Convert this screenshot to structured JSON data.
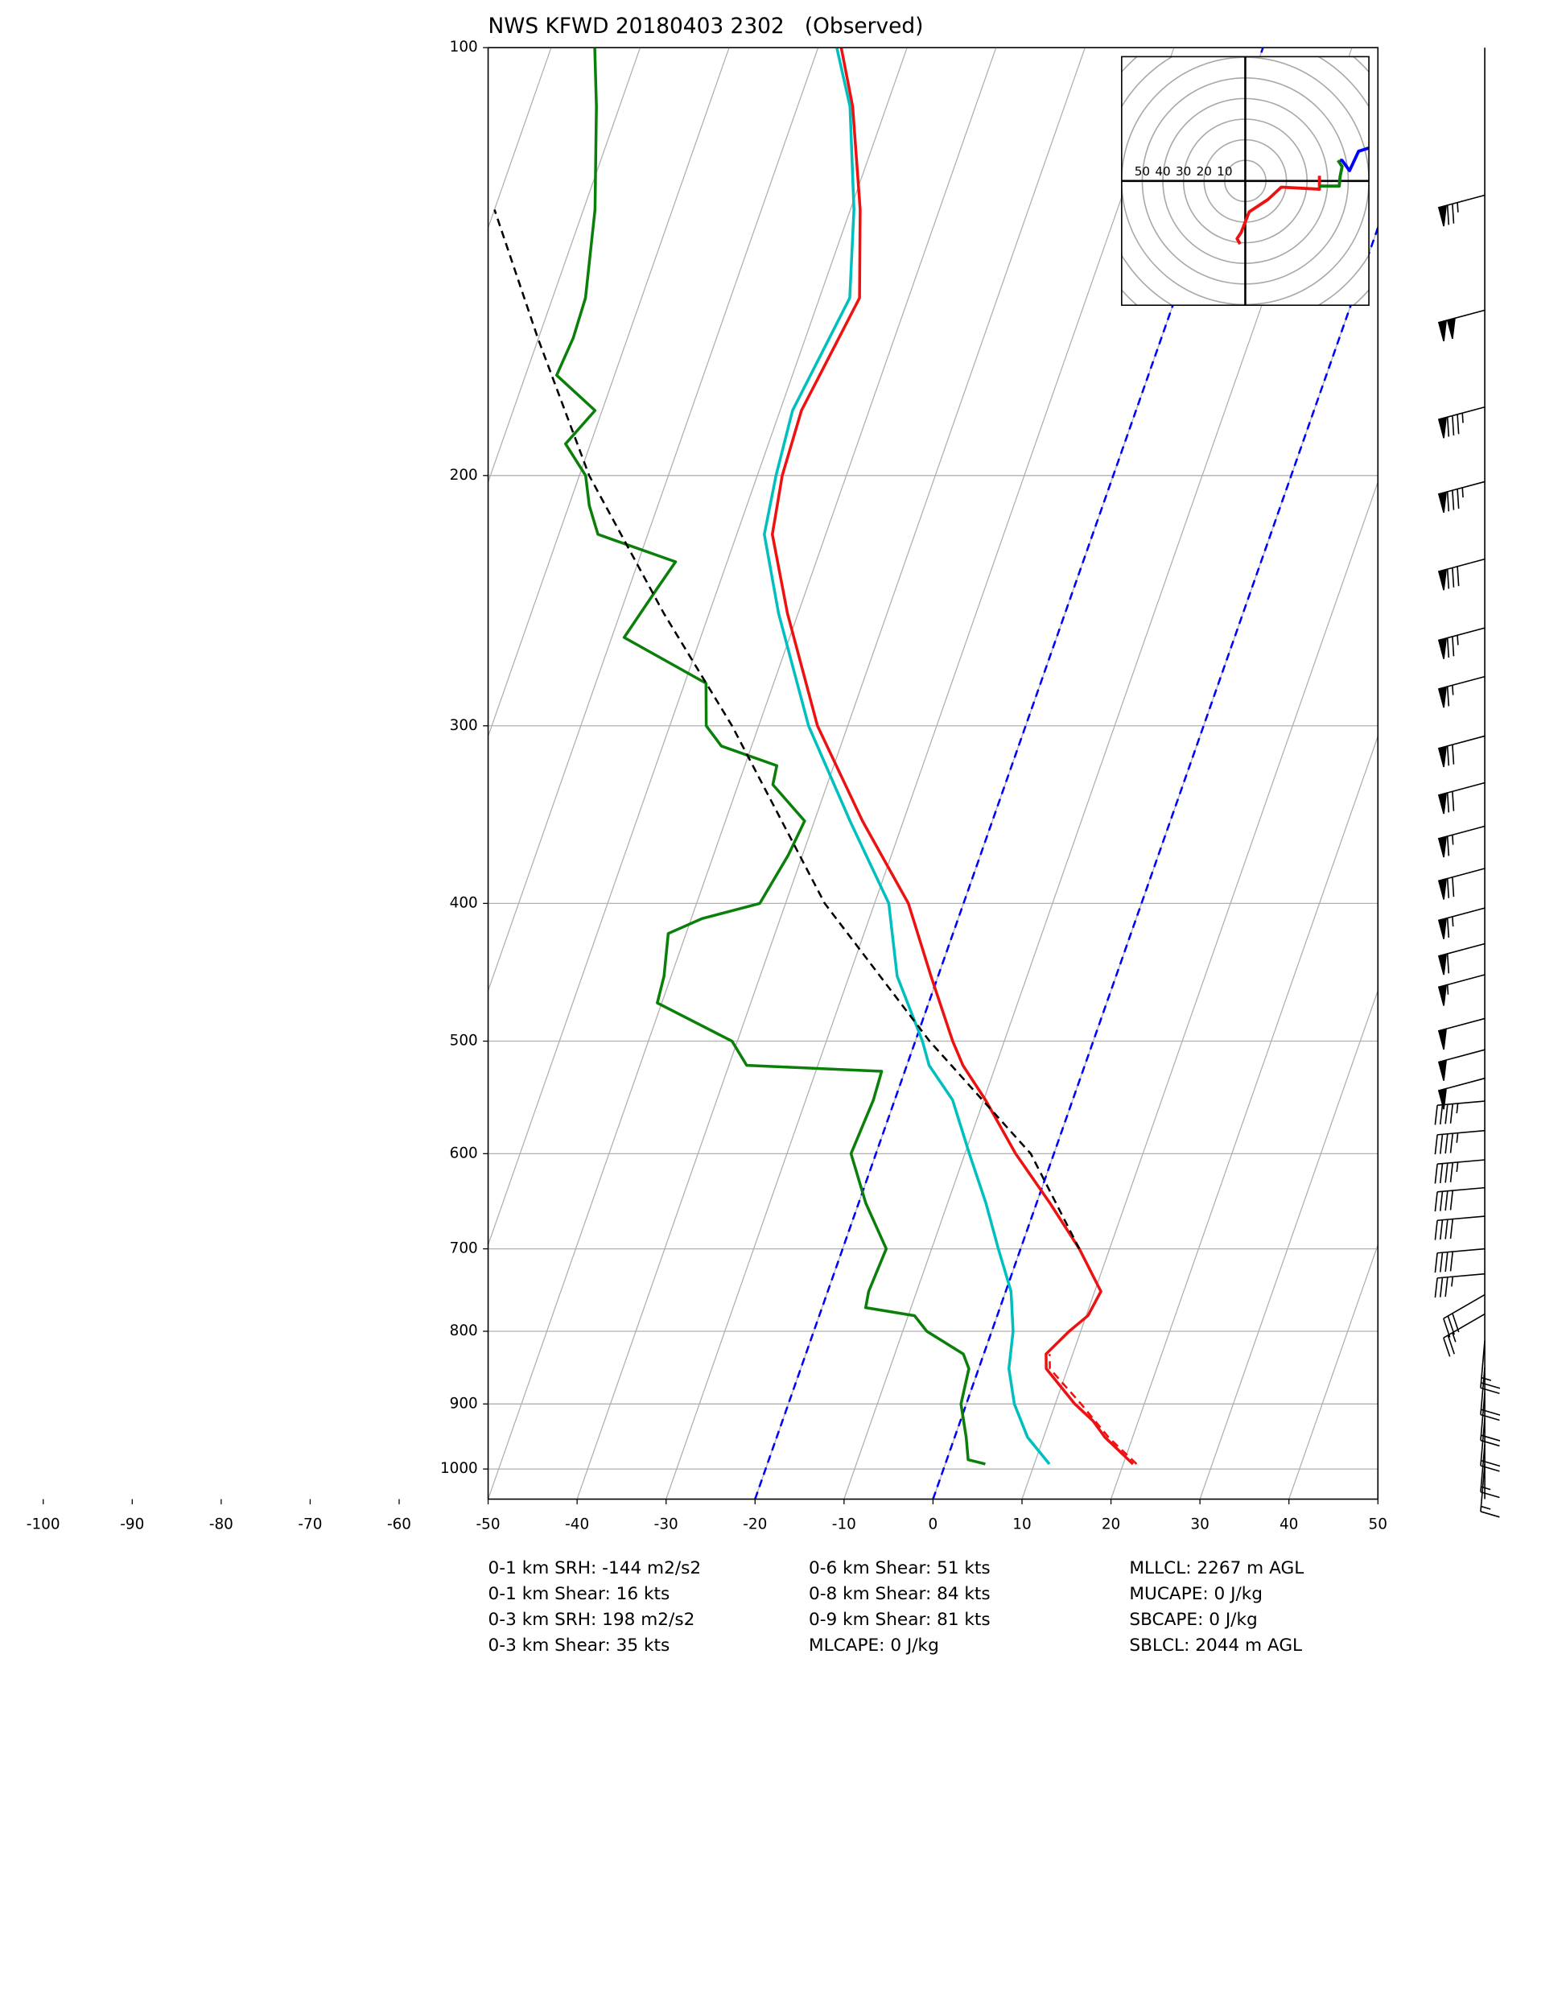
{
  "chart_data": {
    "type": "skewt",
    "title": "NWS KFWD 20180403 2302   (Observed)",
    "xlim": [
      -50,
      50
    ],
    "xticks": [
      -100,
      -90,
      -80,
      -70,
      -60,
      -50,
      -40,
      -30,
      -20,
      -10,
      0,
      10,
      20,
      30,
      40,
      50
    ],
    "ylim": [
      1050,
      100
    ],
    "yticks": [
      100,
      200,
      300,
      400,
      500,
      600,
      700,
      800,
      900,
      1000
    ],
    "log_y": true,
    "grid": true,
    "highlight_isotherms": [
      -20,
      0
    ],
    "highlight_color": "#0000ff",
    "series": [
      {
        "color": "#ee1111",
        "style": "solid",
        "pressure": [
          992,
          950,
          925,
          900,
          850,
          830,
          800,
          780,
          750,
          700,
          650,
          600,
          550,
          520,
          500,
          450,
          400,
          350,
          300,
          250,
          220,
          200,
          180,
          150,
          130,
          110,
          100
        ],
        "temperature": [
          21.1,
          16.9,
          14.9,
          12.2,
          7.6,
          7.0,
          8.7,
          10.2,
          10.7,
          6.6,
          1.5,
          -4.3,
          -9.8,
          -13.7,
          -15.8,
          -20.8,
          -26.2,
          -34.6,
          -43.4,
          -51.2,
          -56.0,
          -57.2,
          -57.6,
          -55.5,
          -58.9,
          -63.8,
          -67.4
        ]
      },
      {
        "color": "#ee1111",
        "style": "dashed",
        "pressure": [
          992,
          950,
          900,
          850,
          830
        ],
        "temperature": [
          21.5,
          17.3,
          12.9,
          8.0,
          7.4
        ]
      },
      {
        "color": "#00bfbf",
        "style": "solid",
        "pressure": [
          992,
          950,
          900,
          850,
          800,
          750,
          700,
          650,
          600,
          550,
          520,
          500,
          450,
          400,
          350,
          300,
          250,
          220,
          200,
          180,
          150,
          130,
          110,
          100
        ],
        "temperature": [
          11.7,
          8.2,
          5.4,
          3.4,
          2.4,
          0.6,
          -2.5,
          -5.7,
          -9.5,
          -13.5,
          -17.5,
          -19.2,
          -24.6,
          -28.4,
          -36.0,
          -44.4,
          -52.2,
          -56.9,
          -57.9,
          -58.6,
          -56.6,
          -59.6,
          -64.1,
          -67.9
        ]
      },
      {
        "color": "#0a7f0a",
        "style": "solid",
        "pressure": [
          992,
          985,
          950,
          900,
          850,
          830,
          800,
          780,
          770,
          750,
          700,
          650,
          600,
          550,
          525,
          520,
          500,
          470,
          450,
          420,
          410,
          400,
          370,
          350,
          330,
          320,
          310,
          300,
          280,
          260,
          240,
          230,
          220,
          210,
          200,
          190,
          180,
          170,
          160,
          150,
          130,
          110,
          100
        ],
        "temperature": [
          4.5,
          2.4,
          1.3,
          -0.6,
          -1.1,
          -2.3,
          -7.3,
          -9.3,
          -15.1,
          -15.4,
          -15.1,
          -19.2,
          -22.8,
          -22.4,
          -22.6,
          -38.0,
          -40.6,
          -50.5,
          -50.8,
          -52.0,
          -48.8,
          -42.9,
          -41.6,
          -41.1,
          -46.1,
          -46.4,
          -53.4,
          -55.9,
          -57.6,
          -68.6,
          -66.8,
          -65.8,
          -75.6,
          -77.7,
          -79.3,
          -82.8,
          -80.8,
          -86.5,
          -86.1,
          -86.3,
          -88.7,
          -92.6,
          -95.1
        ]
      },
      {
        "color": "#000000",
        "style": "dashed",
        "pressure": [
          700,
          600,
          500,
          400,
          300,
          250,
          200,
          160,
          130
        ],
        "temperature": [
          6.6,
          -2.6,
          -18.4,
          -35.6,
          -53.0,
          -65.1,
          -78.9,
          -90.1,
          -100.0
        ]
      }
    ],
    "wind_barbs": {
      "pressure": [
        127,
        153,
        179,
        202,
        229,
        256,
        277,
        305,
        329,
        353,
        378,
        403,
        427,
        449,
        482,
        507,
        531,
        551,
        578,
        606,
        634,
        664,
        700,
        729,
        754,
        778,
        812,
        848,
        884,
        921,
        961,
        992
      ],
      "speed": [
        75,
        100,
        85,
        85,
        80,
        75,
        65,
        70,
        70,
        65,
        70,
        65,
        60,
        55,
        50,
        50,
        50,
        45,
        45,
        45,
        40,
        40,
        40,
        35,
        30,
        25,
        25,
        20,
        20,
        20,
        15,
        15
      ],
      "direction": [
        255,
        255,
        255,
        255,
        255,
        255,
        255,
        255,
        255,
        255,
        255,
        255,
        255,
        255,
        255,
        255,
        255,
        265,
        265,
        265,
        265,
        265,
        265,
        265,
        240,
        240,
        185,
        185,
        185,
        185,
        185,
        185
      ]
    },
    "hodograph": {
      "lim": [
        -60,
        60
      ],
      "rings": [
        10,
        20,
        30,
        40,
        50,
        60,
        70,
        80
      ],
      "ring_labels": [
        50,
        40,
        30,
        20,
        10
      ],
      "segments": [
        {
          "color": "#ee1111",
          "u": [
            -2.5,
            -4,
            -2,
            1.9,
            11,
            17.5,
            36,
            36
          ],
          "v": [
            -30.6,
            -28,
            -25,
            -15,
            -9,
            -3,
            -4,
            2.5
          ]
        },
        {
          "color": "#0a7f0a",
          "u": [
            36,
            45.6,
            46,
            47,
            45
          ],
          "v": [
            -2.5,
            -2.5,
            2,
            7,
            10
          ]
        },
        {
          "color": "#0000ff",
          "u": [
            46,
            47,
            50.6,
            55,
            60
          ],
          "v": [
            10,
            10,
            5,
            14.4,
            16
          ]
        }
      ]
    },
    "stats": [
      [
        "0-1 km SRH: -144 m2/s2",
        "0-1 km Shear: 16 kts",
        "0-3 km SRH: 198 m2/s2",
        "0-3 km Shear: 35 kts"
      ],
      [
        "0-6 km Shear: 51 kts",
        "0-8 km Shear: 84 kts",
        "0-9 km Shear: 81 kts",
        "MLCAPE: 0 J/kg"
      ],
      [
        "MLLCL: 2267 m AGL",
        "MUCAPE: 0 J/kg",
        "SBCAPE: 0 J/kg",
        "SBLCL: 2044 m AGL"
      ]
    ]
  }
}
